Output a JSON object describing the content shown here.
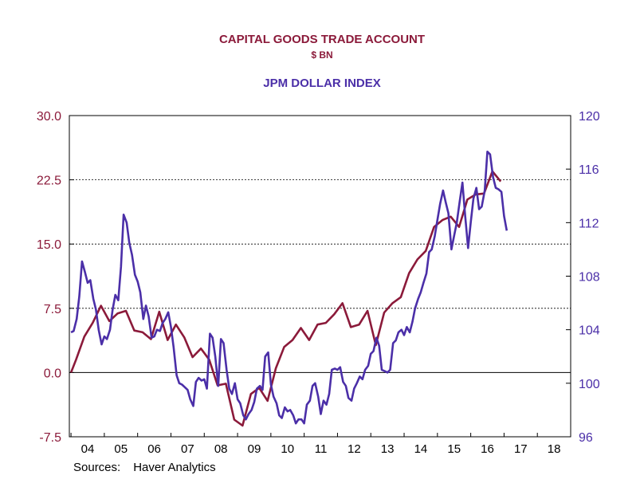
{
  "chart_data": {
    "type": "line",
    "title": "CAPITAL GOODS TRADE ACCOUNT",
    "subtitle": "$ BN",
    "title2": "JPM DOLLAR INDEX",
    "source_label": "Sources:",
    "source_value": "Haver Analytics",
    "x_tick_labels": [
      "04",
      "05",
      "06",
      "07",
      "08",
      "09",
      "10",
      "11",
      "12",
      "13",
      "14",
      "15",
      "16",
      "17",
      "18"
    ],
    "x_range": [
      2003.95,
      2019.0
    ],
    "left_axis": {
      "range": [
        -7.5,
        30.0
      ],
      "ticks": [
        "-7.5",
        "0.0",
        "7.5",
        "15.0",
        "22.5",
        "30.0"
      ],
      "tick_values": [
        -7.5,
        0,
        7.5,
        15,
        22.5,
        30
      ]
    },
    "right_axis": {
      "range": [
        96,
        120
      ],
      "ticks": [
        "96",
        "100",
        "104",
        "108",
        "112",
        "116",
        "120"
      ],
      "tick_values": [
        96,
        100,
        104,
        108,
        112,
        116,
        120
      ]
    },
    "gridlines_left": [
      7.5,
      15,
      22.5
    ],
    "zero_line": 0,
    "colors": {
      "capital_goods": "#8b1a3a",
      "dollar_index": "#4b2fa8"
    },
    "series": [
      {
        "axis": "left",
        "x": [
          2004.0,
          2004.15,
          2004.4,
          2004.65,
          2004.9,
          2005.15,
          2005.4,
          2005.65,
          2005.9,
          2006.15,
          2006.4,
          2006.65,
          2006.9,
          2007.15,
          2007.4,
          2007.65,
          2007.9,
          2008.15,
          2008.4,
          2008.65,
          2008.9,
          2009.15,
          2009.4,
          2009.65,
          2009.9,
          2010.15,
          2010.4,
          2010.65,
          2010.9,
          2011.15,
          2011.4,
          2011.65,
          2011.9,
          2012.15,
          2012.4,
          2012.65,
          2012.9,
          2013.15,
          2013.4,
          2013.65,
          2013.9,
          2014.15,
          2014.4,
          2014.65,
          2014.9,
          2015.15,
          2015.4,
          2015.65,
          2015.9,
          2016.15,
          2016.4,
          2016.65,
          2016.9
        ],
        "values": [
          0.0,
          1.5,
          4.2,
          5.8,
          7.8,
          6.0,
          6.9,
          7.2,
          4.9,
          4.7,
          3.9,
          7.1,
          3.8,
          5.6,
          4.1,
          1.8,
          2.8,
          1.5,
          -1.5,
          -1.3,
          -5.5,
          -6.2,
          -2.5,
          -1.8,
          -3.3,
          0.5,
          3.0,
          3.8,
          5.2,
          3.8,
          5.6,
          5.8,
          6.8,
          8.1,
          5.3,
          5.6,
          7.2,
          3.2,
          7.0,
          8.1,
          8.8,
          11.6,
          13.2,
          14.2,
          17.0,
          17.8,
          18.2,
          17.0,
          20.2,
          20.8,
          20.9,
          23.5,
          22.3
        ]
      },
      {
        "axis": "right",
        "x": [
          2004.0,
          2004.08,
          2004.17,
          2004.25,
          2004.33,
          2004.42,
          2004.5,
          2004.58,
          2004.67,
          2004.75,
          2004.83,
          2004.92,
          2005.0,
          2005.08,
          2005.17,
          2005.25,
          2005.33,
          2005.42,
          2005.5,
          2005.58,
          2005.67,
          2005.75,
          2005.83,
          2005.92,
          2006.0,
          2006.08,
          2006.17,
          2006.25,
          2006.33,
          2006.42,
          2006.5,
          2006.58,
          2006.67,
          2006.75,
          2006.83,
          2006.92,
          2007.0,
          2007.08,
          2007.17,
          2007.25,
          2007.33,
          2007.42,
          2007.5,
          2007.58,
          2007.67,
          2007.75,
          2007.83,
          2007.92,
          2008.0,
          2008.08,
          2008.17,
          2008.25,
          2008.33,
          2008.42,
          2008.5,
          2008.58,
          2008.67,
          2008.75,
          2008.83,
          2008.92,
          2009.0,
          2009.08,
          2009.17,
          2009.25,
          2009.33,
          2009.42,
          2009.5,
          2009.58,
          2009.67,
          2009.75,
          2009.83,
          2009.92,
          2010.0,
          2010.08,
          2010.17,
          2010.25,
          2010.33,
          2010.42,
          2010.5,
          2010.58,
          2010.67,
          2010.75,
          2010.83,
          2010.92,
          2011.0,
          2011.08,
          2011.17,
          2011.25,
          2011.33,
          2011.42,
          2011.5,
          2011.58,
          2011.67,
          2011.75,
          2011.83,
          2011.92,
          2012.0,
          2012.08,
          2012.17,
          2012.25,
          2012.33,
          2012.42,
          2012.5,
          2012.58,
          2012.67,
          2012.75,
          2012.83,
          2012.92,
          2013.0,
          2013.08,
          2013.17,
          2013.25,
          2013.33,
          2013.42,
          2013.5,
          2013.58,
          2013.67,
          2013.75,
          2013.83,
          2013.92,
          2014.0,
          2014.08,
          2014.17,
          2014.25,
          2014.33,
          2014.42,
          2014.5,
          2014.58,
          2014.67,
          2014.75,
          2014.83,
          2014.92,
          2015.0,
          2015.08,
          2015.17,
          2015.25,
          2015.33,
          2015.42,
          2015.5,
          2015.58,
          2015.67,
          2015.75,
          2015.83,
          2015.92,
          2016.0,
          2016.08,
          2016.17,
          2016.25,
          2016.33,
          2016.42,
          2016.5,
          2016.58,
          2016.67,
          2016.75,
          2016.83,
          2016.92,
          2017.0,
          2017.08
        ],
        "values": [
          103.8,
          103.9,
          104.8,
          106.5,
          109.1,
          108.3,
          107.5,
          107.7,
          106.3,
          105.5,
          104.0,
          102.9,
          103.5,
          103.3,
          104.0,
          105.5,
          106.6,
          106.2,
          108.7,
          112.6,
          112.0,
          110.5,
          109.6,
          108.1,
          107.6,
          106.8,
          104.8,
          105.8,
          105.0,
          103.4,
          103.5,
          104.0,
          103.9,
          104.5,
          104.8,
          105.3,
          104.2,
          102.7,
          100.6,
          100.0,
          99.9,
          99.7,
          99.5,
          98.8,
          98.3,
          100.1,
          100.4,
          100.2,
          100.3,
          99.6,
          103.7,
          103.4,
          102.0,
          99.8,
          103.3,
          103.0,
          101.0,
          99.6,
          99.2,
          100.0,
          98.8,
          98.5,
          97.6,
          97.3,
          97.7,
          98.0,
          98.6,
          99.6,
          99.8,
          99.5,
          102.0,
          102.3,
          99.9,
          99.0,
          98.5,
          97.6,
          97.4,
          98.2,
          97.9,
          98.0,
          97.6,
          97.0,
          97.3,
          97.3,
          97.0,
          98.4,
          98.7,
          99.8,
          100.0,
          99.0,
          97.7,
          98.7,
          98.4,
          99.2,
          101.0,
          101.1,
          101.0,
          101.2,
          100.1,
          99.8,
          98.9,
          98.7,
          99.6,
          100.0,
          100.5,
          100.3,
          101.0,
          101.3,
          102.2,
          102.4,
          103.4,
          102.8,
          101.0,
          100.9,
          100.8,
          101.0,
          103.0,
          103.2,
          103.8,
          104.0,
          103.6,
          104.2,
          103.8,
          104.6,
          105.6,
          106.3,
          106.8,
          107.5,
          108.2,
          109.8,
          110.0,
          111.0,
          112.2,
          113.4,
          114.4,
          113.5,
          112.7,
          110.0,
          111.0,
          112.0,
          113.6,
          115.0,
          112.6,
          110.1,
          112.0,
          113.8,
          114.6,
          113.0,
          113.2,
          114.4,
          117.3,
          117.1,
          115.4,
          114.6,
          114.5,
          114.3,
          112.5,
          111.4
        ]
      }
    ]
  }
}
